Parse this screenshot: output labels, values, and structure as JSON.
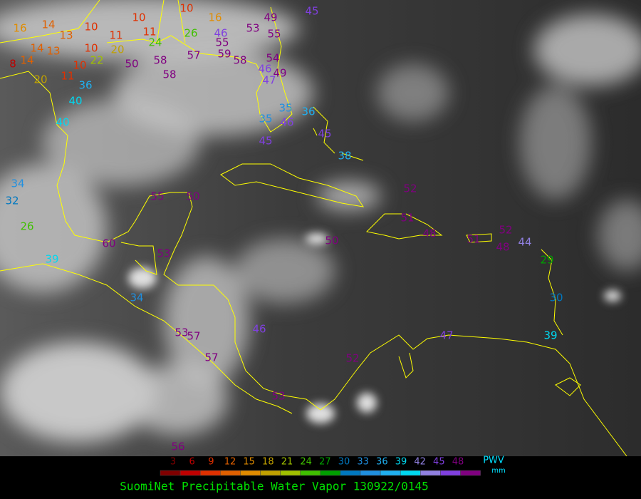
{
  "title": "SuomiNet Precipitable Water Vapor 130922/0145",
  "legend": {
    "ticks": [
      3,
      6,
      9,
      12,
      15,
      18,
      21,
      24,
      27,
      30,
      33,
      36,
      39,
      42,
      45,
      48
    ],
    "colors": [
      "#800000",
      "#c00000",
      "#e03000",
      "#e06000",
      "#e08c00",
      "#c0a000",
      "#a0c000",
      "#40c000",
      "#00a000",
      "#0078c0",
      "#2090e0",
      "#20b0f0",
      "#00d8f0",
      "#9080e0",
      "#8040e0",
      "#800080"
    ],
    "label": "PWV",
    "unit": "mm"
  },
  "stations": [
    16,
    14,
    13,
    11,
    10,
    10,
    11,
    10,
    16,
    26,
    46,
    53,
    49,
    55,
    45,
    55,
    14,
    13,
    10,
    20,
    22,
    24,
    8,
    14,
    10,
    50,
    58,
    57,
    59,
    58,
    54,
    46,
    49,
    47,
    58,
    20,
    11,
    36,
    40,
    40,
    36,
    35,
    46,
    35,
    45,
    45,
    38,
    34,
    32,
    26,
    55,
    50,
    52,
    51,
    60,
    50,
    48,
    51,
    52,
    44,
    48,
    39,
    53,
    30,
    34,
    39,
    46,
    53,
    57,
    57,
    52,
    53,
    56,
    47,
    29
  ]
}
